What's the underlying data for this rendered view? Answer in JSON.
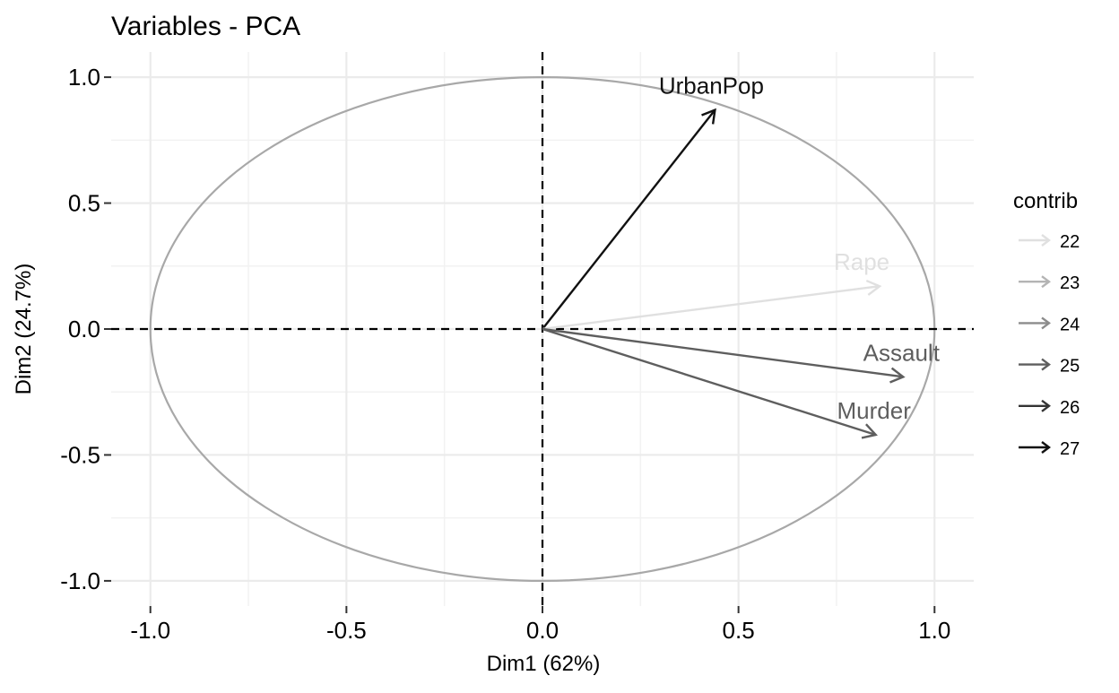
{
  "chart_data": {
    "type": "scatter",
    "subtype": "pca-variable-correlation-circle",
    "title": "Variables - PCA",
    "xlabel": "Dim1 (62%)",
    "ylabel": "Dim2 (24.7%)",
    "xlim": [
      -1.1,
      1.1
    ],
    "ylim": [
      -1.1,
      1.1
    ],
    "x_ticks": [
      -1.0,
      -0.5,
      0.0,
      0.5,
      1.0
    ],
    "x_tick_labels": [
      "-1.0",
      "-0.5",
      "0.0",
      "0.5",
      "1.0"
    ],
    "y_ticks": [
      -1.0,
      -0.5,
      0.0,
      0.5,
      1.0
    ],
    "y_tick_labels": [
      "-1.0",
      "-0.5",
      "0.0",
      "0.5",
      "1.0"
    ],
    "grid": true,
    "unit_circle": true,
    "zero_lines": "dashed",
    "variables": [
      {
        "label": "UrbanPop",
        "x": 0.44,
        "y": 0.87,
        "contrib": 27
      },
      {
        "label": "Rape",
        "x": 0.86,
        "y": 0.17,
        "contrib": 22
      },
      {
        "label": "Assault",
        "x": 0.92,
        "y": -0.19,
        "contrib": 25
      },
      {
        "label": "Murder",
        "x": 0.85,
        "y": -0.42,
        "contrib": 25
      }
    ],
    "legend": {
      "title": "contrib",
      "placement": "right",
      "entries": [
        {
          "label": "22",
          "color": "#e0e0e0"
        },
        {
          "label": "23",
          "color": "#b4b4b4"
        },
        {
          "label": "24",
          "color": "#8c8c8c"
        },
        {
          "label": "25",
          "color": "#5e5e5e"
        },
        {
          "label": "26",
          "color": "#343434"
        },
        {
          "label": "27",
          "color": "#111111"
        }
      ]
    },
    "colors": {
      "circle": "#a8a8a8",
      "grid": "#ebebeb",
      "axis_text": "#000000"
    }
  }
}
